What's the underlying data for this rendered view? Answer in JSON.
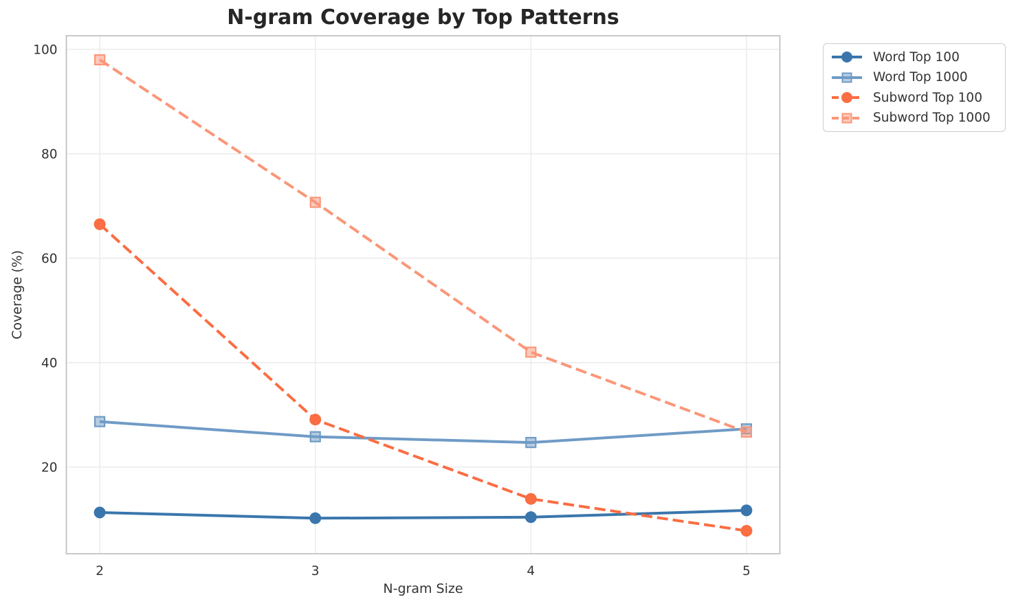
{
  "chart_data": {
    "type": "line",
    "title": "N-gram Coverage by Top Patterns",
    "xlabel": "N-gram Size",
    "ylabel": "Coverage (%)",
    "x": [
      2,
      3,
      4,
      5
    ],
    "x_ticks": [
      "2",
      "3",
      "4",
      "5"
    ],
    "y_ticks": [
      20,
      40,
      60,
      80,
      100
    ],
    "xlim": [
      1.845,
      5.155
    ],
    "ylim": [
      3.4,
      102.6
    ],
    "grid": true,
    "legend_position": "outside-top-right",
    "series": [
      {
        "name": "Word Top 100",
        "color": "#3a76ac",
        "line_style": "solid",
        "marker": "circle",
        "values": [
          11.3,
          10.2,
          10.4,
          11.7
        ]
      },
      {
        "name": "Word Top 1000",
        "color": "#6f9bc6",
        "line_style": "solid",
        "marker": "square",
        "values": [
          28.7,
          25.8,
          24.7,
          27.3
        ]
      },
      {
        "name": "Subword Top 100",
        "color": "#fb6d42",
        "line_style": "dashed",
        "marker": "circle",
        "values": [
          66.5,
          29.1,
          13.9,
          7.8
        ]
      },
      {
        "name": "Subword Top 1000",
        "color": "#fb9678",
        "line_style": "dashed",
        "marker": "square",
        "values": [
          98.0,
          70.7,
          42.0,
          26.7
        ]
      }
    ],
    "colors": {
      "grid": "#ececec",
      "spine": "#c2c2c2",
      "tick_text": "#333333",
      "title_text": "#262626",
      "background": "#ffffff"
    }
  }
}
